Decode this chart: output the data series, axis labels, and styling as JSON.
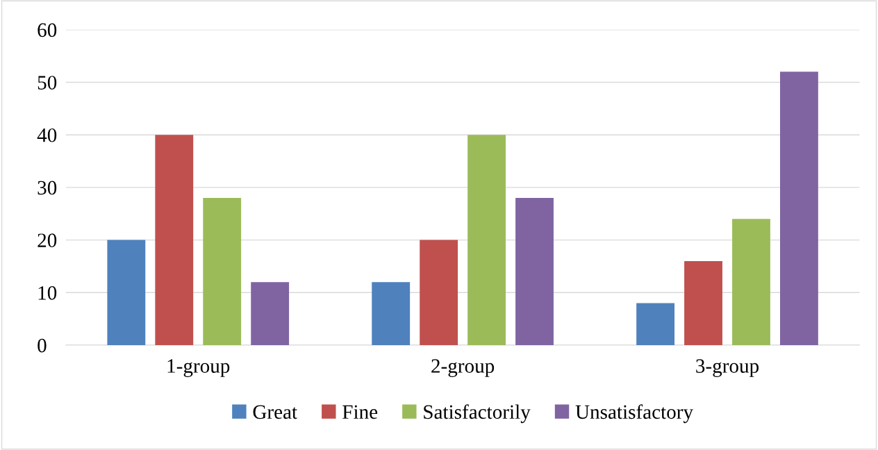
{
  "chart_data": {
    "type": "bar",
    "categories": [
      "1-group",
      "2-group",
      "3-group"
    ],
    "series": [
      {
        "name": "Great",
        "color": "#4f81bd",
        "values": [
          20,
          12,
          8
        ]
      },
      {
        "name": "Fine",
        "color": "#c0504d",
        "values": [
          40,
          20,
          16
        ]
      },
      {
        "name": "Satisfactorily",
        "color": "#9bbb59",
        "values": [
          28,
          40,
          24
        ]
      },
      {
        "name": "Unsatisfactory",
        "color": "#8064a2",
        "values": [
          12,
          28,
          52
        ]
      }
    ],
    "ylim": [
      0,
      60
    ],
    "yticks": [
      0,
      10,
      20,
      30,
      40,
      50,
      60
    ],
    "grid": "y",
    "legend": "bottom"
  }
}
